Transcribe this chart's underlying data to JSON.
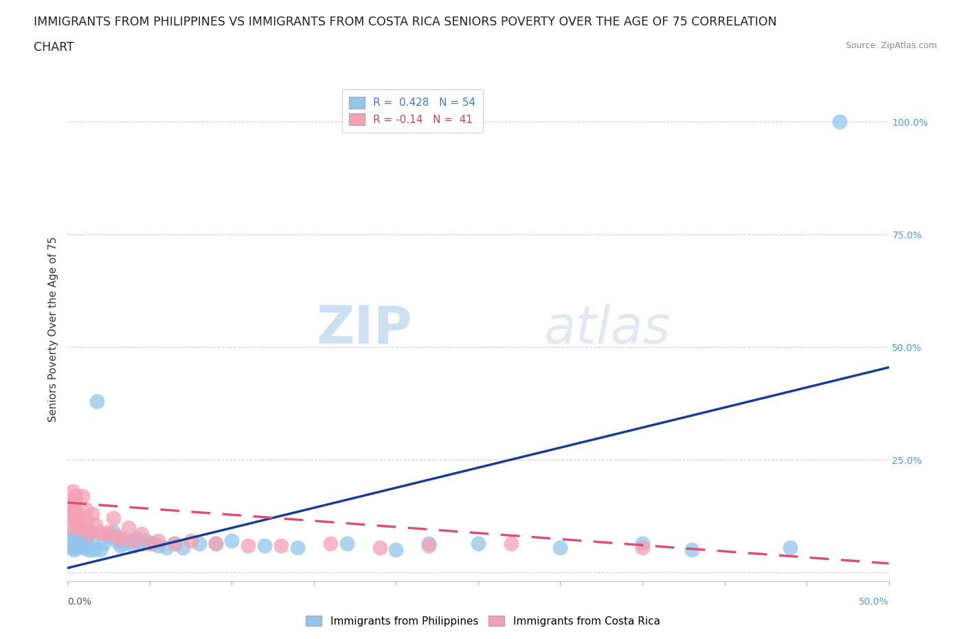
{
  "title_line1": "IMMIGRANTS FROM PHILIPPINES VS IMMIGRANTS FROM COSTA RICA SENIORS POVERTY OVER THE AGE OF 75 CORRELATION",
  "title_line2": "CHART",
  "source": "Source: ZipAtlas.com",
  "ylabel": "Seniors Poverty Over the Age of 75",
  "xlim": [
    0.0,
    0.5
  ],
  "ylim": [
    -0.02,
    1.1
  ],
  "watermark_zip": "ZIP",
  "watermark_atlas": "atlas",
  "philippines_R": 0.428,
  "philippines_N": 54,
  "costarica_R": -0.14,
  "costarica_N": 41,
  "philippines_color": "#92C5EC",
  "costarica_color": "#F4A0B5",
  "philippines_line_color": "#1A3D8F",
  "costarica_line_color": "#D94F7A",
  "philippines_line_start_y": 0.01,
  "philippines_line_end_y": 0.455,
  "costarica_line_start_y": 0.155,
  "costarica_line_end_y": 0.02,
  "philippines_x": [
    0.002,
    0.002,
    0.003,
    0.003,
    0.004,
    0.004,
    0.005,
    0.005,
    0.006,
    0.006,
    0.007,
    0.007,
    0.008,
    0.009,
    0.01,
    0.01,
    0.011,
    0.012,
    0.013,
    0.014,
    0.015,
    0.016,
    0.018,
    0.02,
    0.022,
    0.025,
    0.028,
    0.03,
    0.032,
    0.034,
    0.037,
    0.04,
    0.042,
    0.045,
    0.048,
    0.052,
    0.055,
    0.06,
    0.065,
    0.07,
    0.08,
    0.09,
    0.1,
    0.12,
    0.14,
    0.17,
    0.2,
    0.22,
    0.25,
    0.3,
    0.35,
    0.38,
    0.44,
    0.47
  ],
  "philippines_y": [
    0.055,
    0.07,
    0.06,
    0.08,
    0.05,
    0.09,
    0.06,
    0.07,
    0.055,
    0.08,
    0.065,
    0.09,
    0.07,
    0.06,
    0.075,
    0.055,
    0.065,
    0.08,
    0.05,
    0.09,
    0.07,
    0.05,
    0.38,
    0.05,
    0.065,
    0.08,
    0.09,
    0.07,
    0.06,
    0.065,
    0.07,
    0.06,
    0.075,
    0.065,
    0.07,
    0.065,
    0.06,
    0.055,
    0.065,
    0.055,
    0.065,
    0.065,
    0.07,
    0.06,
    0.055,
    0.065,
    0.05,
    0.065,
    0.065,
    0.055,
    0.065,
    0.05,
    0.055,
    1.0
  ],
  "costarica_x": [
    0.001,
    0.002,
    0.002,
    0.003,
    0.003,
    0.004,
    0.004,
    0.005,
    0.005,
    0.006,
    0.006,
    0.007,
    0.008,
    0.009,
    0.01,
    0.011,
    0.012,
    0.013,
    0.015,
    0.017,
    0.019,
    0.022,
    0.025,
    0.028,
    0.03,
    0.033,
    0.037,
    0.04,
    0.045,
    0.05,
    0.055,
    0.065,
    0.075,
    0.09,
    0.11,
    0.13,
    0.16,
    0.19,
    0.22,
    0.27,
    0.35
  ],
  "costarica_y": [
    0.12,
    0.15,
    0.13,
    0.18,
    0.1,
    0.14,
    0.16,
    0.12,
    0.17,
    0.115,
    0.13,
    0.1,
    0.12,
    0.17,
    0.1,
    0.14,
    0.115,
    0.085,
    0.13,
    0.105,
    0.09,
    0.085,
    0.09,
    0.12,
    0.08,
    0.075,
    0.1,
    0.07,
    0.085,
    0.065,
    0.07,
    0.065,
    0.07,
    0.065,
    0.06,
    0.06,
    0.065,
    0.055,
    0.06,
    0.065,
    0.055
  ],
  "background_color": "#FFFFFF",
  "grid_color": "#CCCCCC",
  "title_fontsize": 12.5,
  "axis_label_fontsize": 11,
  "tick_fontsize": 10,
  "legend_fontsize": 11,
  "watermark_fontsize_zip": 55,
  "watermark_fontsize_atlas": 55
}
